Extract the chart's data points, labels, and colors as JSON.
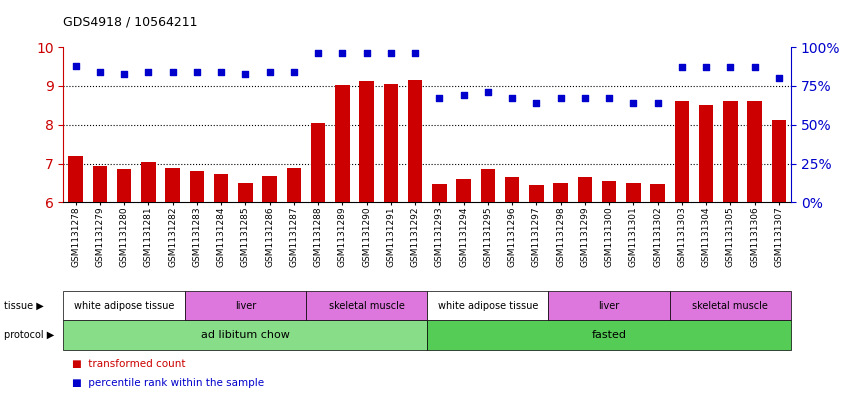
{
  "title": "GDS4918 / 10564211",
  "samples": [
    "GSM1131278",
    "GSM1131279",
    "GSM1131280",
    "GSM1131281",
    "GSM1131282",
    "GSM1131283",
    "GSM1131284",
    "GSM1131285",
    "GSM1131286",
    "GSM1131287",
    "GSM1131288",
    "GSM1131289",
    "GSM1131290",
    "GSM1131291",
    "GSM1131292",
    "GSM1131293",
    "GSM1131294",
    "GSM1131295",
    "GSM1131296",
    "GSM1131297",
    "GSM1131298",
    "GSM1131299",
    "GSM1131300",
    "GSM1131301",
    "GSM1131302",
    "GSM1131303",
    "GSM1131304",
    "GSM1131305",
    "GSM1131306",
    "GSM1131307"
  ],
  "transformed_count": [
    7.2,
    6.95,
    6.85,
    7.05,
    6.88,
    6.8,
    6.72,
    6.5,
    6.68,
    6.88,
    8.05,
    9.02,
    9.12,
    9.05,
    9.15,
    6.48,
    6.6,
    6.85,
    6.65,
    6.45,
    6.5,
    6.65,
    6.55,
    6.5,
    6.48,
    8.6,
    8.5,
    8.62,
    8.6,
    8.12
  ],
  "percentile_rank": [
    88,
    84,
    83,
    84,
    84,
    84,
    84,
    83,
    84,
    84,
    96,
    96,
    96,
    96,
    96,
    67,
    69,
    71,
    67,
    64,
    67,
    67,
    67,
    64,
    64,
    87,
    87,
    87,
    87,
    80
  ],
  "ylim_left": [
    6,
    10
  ],
  "ylim_right": [
    0,
    100
  ],
  "yticks_left": [
    6,
    7,
    8,
    9,
    10
  ],
  "yticks_right": [
    0,
    25,
    50,
    75,
    100
  ],
  "bar_color": "#CC0000",
  "dot_color": "#0000CC",
  "protocol_regions": [
    {
      "label": "ad libitum chow",
      "start": 0,
      "end": 15,
      "color": "#88DD88"
    },
    {
      "label": "fasted",
      "start": 15,
      "end": 30,
      "color": "#55CC55"
    }
  ],
  "tissue_regions": [
    {
      "label": "white adipose tissue",
      "start": 0,
      "end": 5,
      "color": "#FFFFFF"
    },
    {
      "label": "liver",
      "start": 5,
      "end": 10,
      "color": "#DD77DD"
    },
    {
      "label": "skeletal muscle",
      "start": 10,
      "end": 15,
      "color": "#DD77DD"
    },
    {
      "label": "white adipose tissue",
      "start": 15,
      "end": 20,
      "color": "#FFFFFF"
    },
    {
      "label": "liver",
      "start": 20,
      "end": 25,
      "color": "#DD77DD"
    },
    {
      "label": "skeletal muscle",
      "start": 25,
      "end": 30,
      "color": "#DD77DD"
    }
  ]
}
